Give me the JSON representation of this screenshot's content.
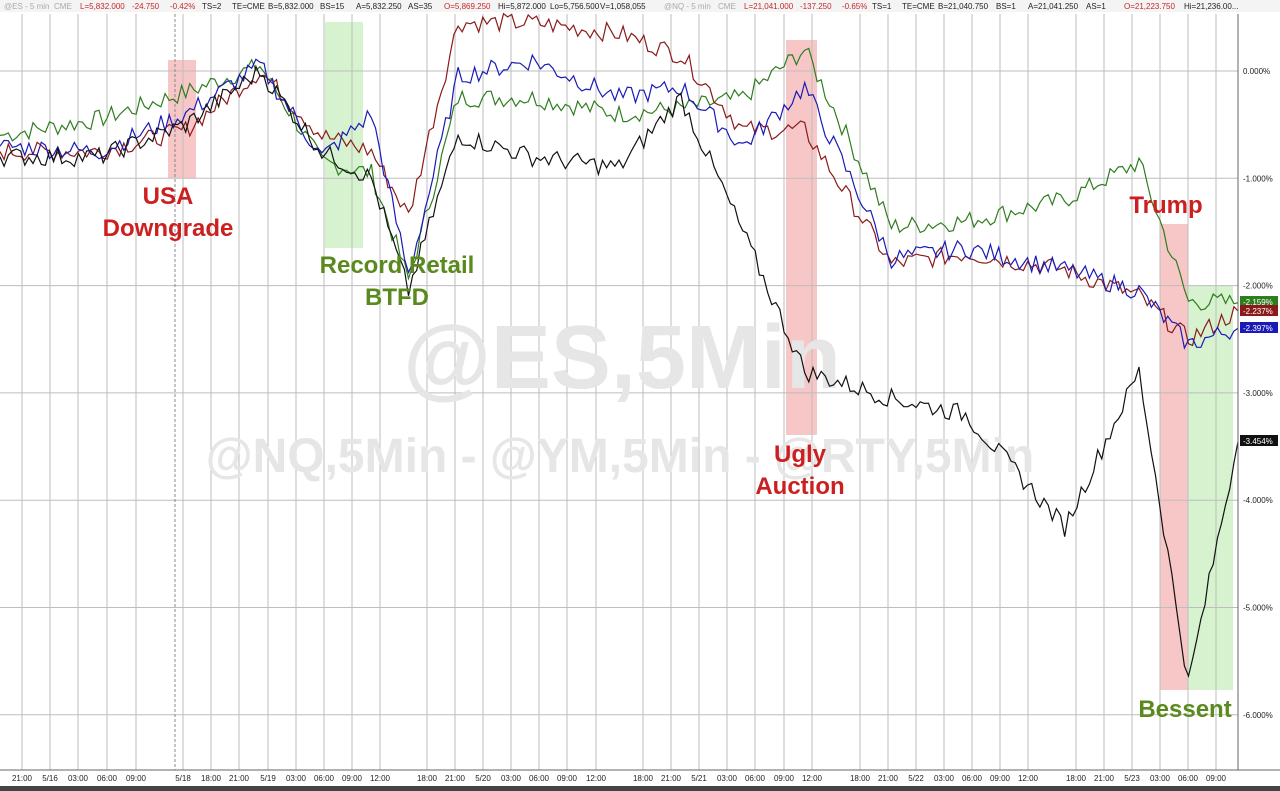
{
  "header": {
    "es": {
      "symbol": "@ES - 5 min",
      "exchange": "CME",
      "last": "L=5,832.000",
      "chg": "-24.750",
      "pct": "-0.42%",
      "ts": "TS=2",
      "te": "TE=CME",
      "bid": "B=5,832.000",
      "bs": "BS=15",
      "ask": "A=5,832.250",
      "as": "AS=35",
      "open": "O=5,869.250",
      "hi": "Hi=5,872.000",
      "lo": "Lo=5,756.500",
      "vol": "V=1,058,055"
    },
    "nq": {
      "symbol": "@NQ - 5 min",
      "exchange": "CME",
      "last": "L=21,041.000",
      "chg": "-137.250",
      "pct": "-0.65%",
      "ts": "TS=1",
      "te": "TE=CME",
      "bid": "B=21,040.750",
      "bs": "BS=1",
      "ask": "A=21,041.250",
      "as": "AS=1",
      "open": "O=21,223.750",
      "hi": "Hi=21,236.00..."
    }
  },
  "watermark": {
    "line1": "@ES,5Min",
    "line2": "@NQ,5Min - @YM,5Min - @RTY,5Min"
  },
  "colors": {
    "es": "#1a1ab8",
    "nq": "#8b1a1a",
    "ym": "#111111",
    "rty": "#2e7d1e",
    "red_text": "#cc1f1f",
    "green_text": "#5a8a1e",
    "red_band": "#f7c6c6",
    "green_band": "#d6f2cf"
  },
  "annotations": [
    {
      "id": "usa-downgrade",
      "lines": [
        "USA",
        "Downgrade"
      ],
      "color": "red"
    },
    {
      "id": "record-retail",
      "lines": [
        "Record Retail",
        "BTFD"
      ],
      "color": "green"
    },
    {
      "id": "ugly-auction",
      "lines": [
        "Ugly",
        "Auction"
      ],
      "color": "red"
    },
    {
      "id": "trump",
      "lines": [
        "Trump"
      ],
      "color": "red"
    },
    {
      "id": "bessent",
      "lines": [
        "Bessent"
      ],
      "color": "green"
    }
  ],
  "last_value_tags": [
    {
      "label": "-2.159%",
      "series": "rty"
    },
    {
      "label": "-2.237%",
      "series": "nq"
    },
    {
      "label": "-2.397%",
      "series": "es"
    },
    {
      "label": "-3.454%",
      "series": "ym"
    }
  ],
  "chart_data": {
    "type": "line",
    "title": "",
    "xlabel": "",
    "ylabel": "",
    "ylim": [
      -6.2,
      0.5
    ],
    "grid": true,
    "y_ticks": [
      "0.000%",
      "-1.000%",
      "-2.000%",
      "-3.000%",
      "-4.000%",
      "-5.000%",
      "-6.000%"
    ],
    "y_tick_values": [
      0,
      -1,
      -2,
      -3,
      -4,
      -5,
      -6
    ],
    "x_ticks": [
      "21:00",
      "5/16",
      "03:00",
      "06:00",
      "09:00",
      "5/18",
      "18:00",
      "21:00",
      "5/19",
      "03:00",
      "06:00",
      "09:00",
      "12:00",
      "18:00",
      "21:00",
      "5/20",
      "03:00",
      "06:00",
      "09:00",
      "12:00",
      "18:00",
      "21:00",
      "5/21",
      "03:00",
      "06:00",
      "09:00",
      "12:00",
      "18:00",
      "21:00",
      "5/22",
      "03:00",
      "06:00",
      "09:00",
      "12:00",
      "18:00",
      "21:00",
      "5/23",
      "03:00",
      "06:00",
      "09:00"
    ],
    "x": [
      0,
      8,
      15,
      21,
      26,
      30,
      33,
      37,
      43,
      50,
      55,
      60,
      65,
      72,
      78,
      86,
      92,
      96,
      100
    ],
    "series": [
      {
        "key": "es",
        "values": [
          -0.7,
          -0.75,
          -0.4,
          0.05,
          -0.8,
          -0.4,
          -1.9,
          -0.05,
          0.1,
          -0.25,
          -0.15,
          -0.7,
          -0.15,
          -1.75,
          -1.65,
          -1.85,
          -2.05,
          -2.55,
          -2.397
        ]
      },
      {
        "key": "nq",
        "values": [
          -0.75,
          -0.75,
          -0.55,
          0.0,
          -0.6,
          -0.75,
          -1.35,
          0.45,
          0.45,
          0.35,
          0.15,
          -0.55,
          -0.55,
          -1.8,
          -1.7,
          -1.85,
          -2.1,
          -2.5,
          -2.237
        ]
      },
      {
        "key": "ym",
        "values": [
          -0.8,
          -0.8,
          -0.5,
          0.0,
          -0.75,
          -1.0,
          -2.05,
          -0.6,
          -0.8,
          -0.9,
          -0.25,
          -1.5,
          -2.8,
          -3.05,
          -3.2,
          -4.25,
          -2.8,
          -5.7,
          -3.454
        ]
      },
      {
        "key": "rty",
        "values": [
          -0.6,
          -0.45,
          -0.2,
          0.05,
          -0.85,
          -0.95,
          -1.95,
          -0.25,
          -0.25,
          -0.4,
          -0.35,
          -0.25,
          0.2,
          -1.45,
          -1.4,
          -1.2,
          -0.85,
          -2.15,
          -2.159
        ]
      }
    ]
  }
}
